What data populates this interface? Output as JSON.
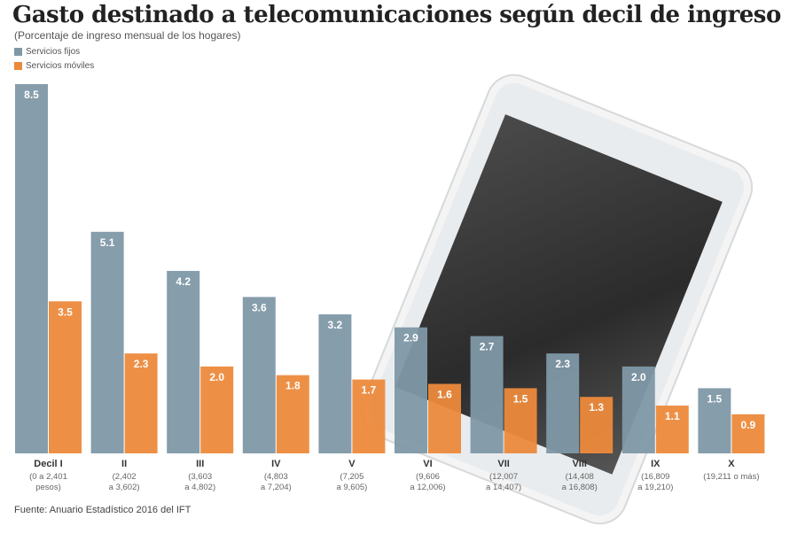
{
  "chart_data": {
    "type": "bar",
    "title": "Gasto destinado a telecomunicaciones según decil de ingreso",
    "subtitle": "(Porcentaje de ingreso mensual de los hogares)",
    "categories": [
      "Decil I",
      "II",
      "III",
      "IV",
      "V",
      "VI",
      "VII",
      "VIII",
      "IX",
      "X"
    ],
    "category_ranges": [
      "(0 a 2,401 pesos)",
      "(2,402 a 3,602)",
      "(3,603 a 4,802)",
      "(4,803 a 7,204)",
      "(7,205 a 9,605)",
      "(9,606 a 12,006)",
      "(12,007 a 14,407)",
      "(14,408 a 16,808)",
      "(16,809 a 19,210)",
      "(19,211 o más)"
    ],
    "series": [
      {
        "name": "Servicios fijos",
        "color": "#7f98a6",
        "values": [
          8.5,
          5.1,
          4.2,
          3.6,
          3.2,
          2.9,
          2.7,
          2.3,
          2.0,
          1.5
        ]
      },
      {
        "name": "Servicios móviles",
        "color": "#ec8a3c",
        "values": [
          3.5,
          2.3,
          2.0,
          1.8,
          1.7,
          1.6,
          1.5,
          1.3,
          1.1,
          0.9
        ]
      }
    ],
    "ylim": [
      0,
      8.5
    ],
    "grid": false,
    "legend": "top-left",
    "source": "Fuente: Anuario Estadístico 2016 del IFT"
  }
}
